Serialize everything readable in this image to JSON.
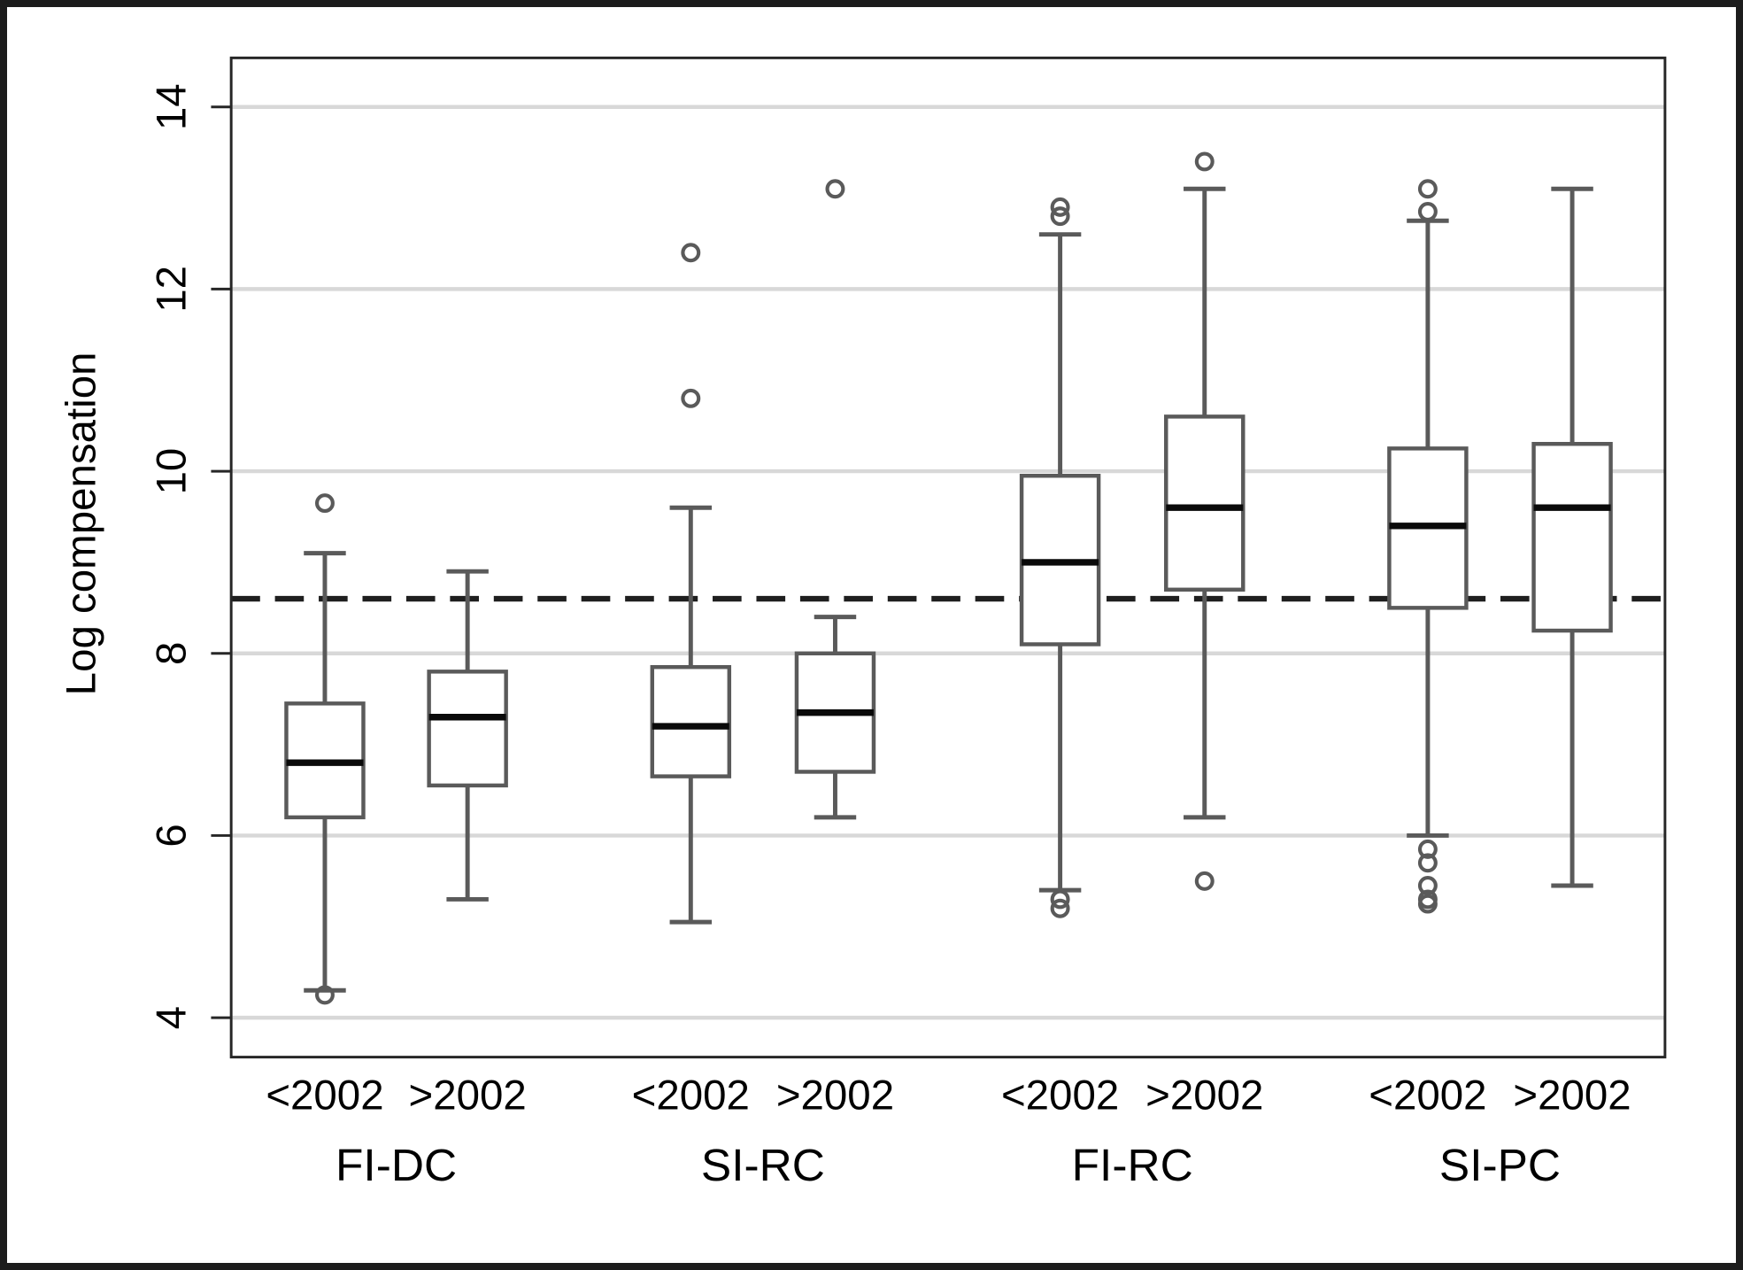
{
  "figure": {
    "background": "#ffffff",
    "border_color": "#1c1c1c"
  },
  "chart_data": {
    "type": "box",
    "title": "",
    "xlabel": "",
    "ylabel": "Log compensation",
    "yticks": [
      4,
      6,
      8,
      10,
      12,
      14
    ],
    "ylim": [
      3.6,
      14.55
    ],
    "grid": true,
    "legend": "none",
    "reference_line": {
      "value": 8.6,
      "style": "dashed",
      "color": "#1f1f1f"
    },
    "period_labels": [
      "<2002",
      ">2002"
    ],
    "colors": {
      "box_stroke": "#5a5a5a",
      "box_fill": "#ffffff",
      "median": "#0a0a0a",
      "gridline": "#d8d8d8",
      "axis": "#262626",
      "text": "#000000"
    },
    "groups": [
      {
        "label": "FI-DC",
        "boxes": [
          {
            "period": "<2002",
            "low": 4.3,
            "q1": 6.2,
            "median": 6.8,
            "q3": 7.45,
            "high": 9.1,
            "outliers": [
              9.65,
              4.25
            ]
          },
          {
            "period": ">2002",
            "low": 5.3,
            "q1": 6.55,
            "median": 7.3,
            "q3": 7.8,
            "high": 8.9,
            "outliers": []
          }
        ]
      },
      {
        "label": "SI-RC",
        "boxes": [
          {
            "period": "<2002",
            "low": 5.05,
            "q1": 6.65,
            "median": 7.2,
            "q3": 7.85,
            "high": 9.6,
            "outliers": [
              10.8,
              12.4
            ]
          },
          {
            "period": ">2002",
            "low": 6.2,
            "q1": 6.7,
            "median": 7.35,
            "q3": 8.0,
            "high": 8.4,
            "outliers": [
              13.1
            ]
          }
        ]
      },
      {
        "label": "FI-RC",
        "boxes": [
          {
            "period": "<2002",
            "low": 5.4,
            "q1": 8.1,
            "median": 9.0,
            "q3": 9.95,
            "high": 12.6,
            "outliers": [
              12.8,
              12.9,
              5.3,
              5.2
            ]
          },
          {
            "period": ">2002",
            "low": 6.2,
            "q1": 8.7,
            "median": 9.6,
            "q3": 10.6,
            "high": 13.1,
            "outliers": [
              13.4,
              5.5
            ]
          }
        ]
      },
      {
        "label": "SI-PC",
        "boxes": [
          {
            "period": "<2002",
            "low": 6.0,
            "q1": 8.5,
            "median": 9.4,
            "q3": 10.25,
            "high": 12.75,
            "outliers": [
              12.85,
              13.1,
              5.85,
              5.7,
              5.45,
              5.3,
              5.25
            ]
          },
          {
            "period": ">2002",
            "low": 5.45,
            "q1": 8.25,
            "median": 9.6,
            "q3": 10.3,
            "high": 13.1,
            "outliers": []
          }
        ]
      }
    ]
  }
}
